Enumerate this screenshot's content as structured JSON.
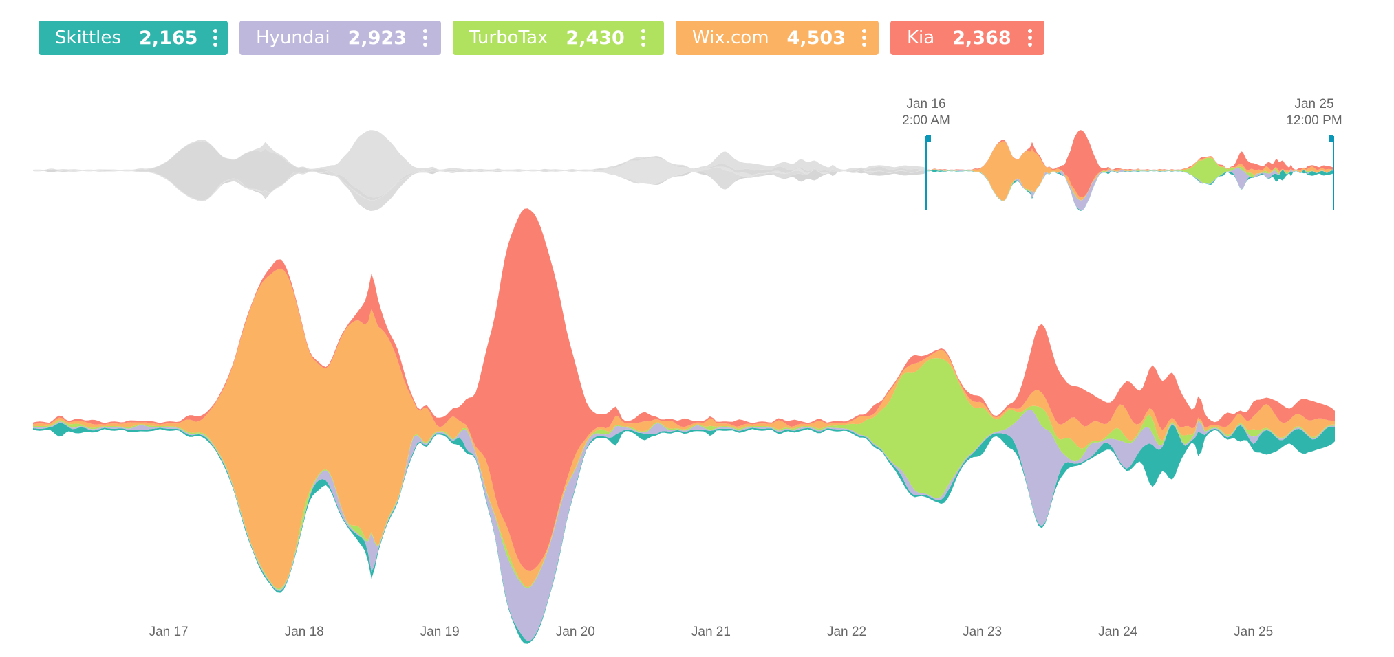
{
  "legend": [
    {
      "name": "Skittles",
      "count": "2,165",
      "color": "#2FB5AC"
    },
    {
      "name": "Hyundai",
      "count": "2,923",
      "color": "#BEB8DC"
    },
    {
      "name": "TurboTax",
      "count": "2,430",
      "color": "#B0E15F"
    },
    {
      "name": "Wix.com",
      "count": "4,503",
      "color": "#FBB262"
    },
    {
      "name": "Kia",
      "count": "2,368",
      "color": "#FA8072"
    }
  ],
  "brush": {
    "start_date": "Jan 16",
    "start_time": "2:00 AM",
    "end_date": "Jan 25",
    "end_time": "12:00 PM"
  },
  "chart_data": {
    "type": "area",
    "layout": "streamgraph",
    "x_unit": "days",
    "x_range": [
      16.0,
      25.6
    ],
    "xticks": [
      {
        "label": "Jan 17",
        "x": 17
      },
      {
        "label": "Jan 18",
        "x": 18
      },
      {
        "label": "Jan 19",
        "x": 19
      },
      {
        "label": "Jan 20",
        "x": 20
      },
      {
        "label": "Jan 21",
        "x": 21
      },
      {
        "label": "Jan 22",
        "x": 22
      },
      {
        "label": "Jan 23",
        "x": 23
      },
      {
        "label": "Jan 24",
        "x": 24
      },
      {
        "label": "Jan 25",
        "x": 25
      }
    ],
    "series": [
      {
        "name": "Skittles",
        "color": "#2FB5AC",
        "peaks": [
          [
            16.2,
            18,
            5
          ],
          [
            16.35,
            6,
            5
          ],
          [
            18.1,
            12,
            4
          ],
          [
            18.45,
            12,
            4
          ],
          [
            19.15,
            10,
            6
          ],
          [
            19.6,
            6,
            6
          ],
          [
            20.3,
            14,
            8
          ],
          [
            20.5,
            8,
            6
          ],
          [
            21.0,
            5,
            10
          ],
          [
            22.4,
            6,
            6
          ],
          [
            22.75,
            8,
            4
          ],
          [
            23.0,
            14,
            4
          ],
          [
            23.2,
            16,
            4
          ],
          [
            23.6,
            12,
            5
          ],
          [
            23.9,
            10,
            5
          ],
          [
            24.15,
            6,
            4
          ],
          [
            24.25,
            60,
            4
          ],
          [
            24.4,
            80,
            4
          ],
          [
            24.6,
            38,
            10
          ],
          [
            24.9,
            22,
            6
          ],
          [
            25.1,
            34,
            3
          ],
          [
            25.35,
            32,
            3
          ],
          [
            25.55,
            26,
            3
          ]
        ],
        "base": 3
      },
      {
        "name": "Hyundai",
        "color": "#BEB8DC",
        "peaks": [
          [
            16.8,
            6,
            5
          ],
          [
            18.2,
            18,
            3
          ],
          [
            18.5,
            58,
            10
          ],
          [
            18.8,
            20,
            6
          ],
          [
            19.2,
            26,
            6
          ],
          [
            19.5,
            26,
            3
          ],
          [
            19.7,
            80,
            1
          ],
          [
            19.9,
            20,
            3
          ],
          [
            20.3,
            10,
            5
          ],
          [
            20.6,
            14,
            5
          ],
          [
            20.9,
            6,
            8
          ],
          [
            22.45,
            12,
            4
          ],
          [
            22.75,
            6,
            4
          ],
          [
            23.4,
            150,
            2
          ],
          [
            23.5,
            32,
            4
          ],
          [
            23.8,
            18,
            4
          ],
          [
            24.05,
            36,
            3
          ],
          [
            24.2,
            24,
            3
          ],
          [
            24.6,
            16,
            8
          ],
          [
            25.0,
            10,
            8
          ]
        ],
        "base": 2
      },
      {
        "name": "TurboTax",
        "color": "#B0E15F",
        "peaks": [
          [
            16.3,
            4,
            6
          ],
          [
            18.0,
            12,
            6
          ],
          [
            18.4,
            10,
            6
          ],
          [
            19.5,
            8,
            4
          ],
          [
            20.2,
            6,
            6
          ],
          [
            21.0,
            4,
            8
          ],
          [
            22.4,
            10,
            4
          ],
          [
            22.6,
            192,
            0.8
          ],
          [
            22.7,
            30,
            3
          ],
          [
            22.8,
            14,
            4
          ],
          [
            23.0,
            12,
            4
          ],
          [
            23.2,
            20,
            4
          ],
          [
            23.45,
            26,
            4
          ],
          [
            23.65,
            30,
            3
          ],
          [
            24.0,
            16,
            4
          ],
          [
            24.25,
            20,
            4
          ],
          [
            24.5,
            12,
            6
          ],
          [
            25.0,
            10,
            6
          ]
        ],
        "base": 2
      },
      {
        "name": "Wix.com",
        "color": "#FBB262",
        "peaks": [
          [
            16.4,
            4,
            6
          ],
          [
            16.7,
            4,
            6
          ],
          [
            17.15,
            12,
            4
          ],
          [
            17.35,
            10,
            4
          ],
          [
            17.7,
            400,
            1
          ],
          [
            17.85,
            120,
            2
          ],
          [
            17.95,
            130,
            2
          ],
          [
            18.1,
            60,
            3
          ],
          [
            18.3,
            120,
            2
          ],
          [
            18.45,
            220,
            1
          ],
          [
            18.55,
            130,
            2
          ],
          [
            18.7,
            80,
            3
          ],
          [
            18.9,
            40,
            5
          ],
          [
            19.1,
            30,
            5
          ],
          [
            19.35,
            40,
            4
          ],
          [
            19.5,
            30,
            3
          ],
          [
            19.65,
            20,
            3
          ],
          [
            20.0,
            16,
            4
          ],
          [
            20.3,
            10,
            5
          ],
          [
            20.5,
            12,
            4
          ],
          [
            20.7,
            8,
            5
          ],
          [
            21.0,
            8,
            6
          ],
          [
            21.5,
            10,
            6
          ],
          [
            21.8,
            8,
            6
          ],
          [
            22.1,
            8,
            6
          ],
          [
            22.3,
            12,
            4
          ],
          [
            22.5,
            10,
            4
          ],
          [
            22.7,
            10,
            4
          ],
          [
            22.95,
            6,
            4
          ],
          [
            23.4,
            20,
            3
          ],
          [
            23.55,
            16,
            3
          ],
          [
            23.7,
            34,
            3
          ],
          [
            23.85,
            24,
            3
          ],
          [
            24.05,
            40,
            3
          ],
          [
            24.3,
            16,
            4
          ],
          [
            24.5,
            10,
            4
          ],
          [
            24.85,
            14,
            4
          ],
          [
            25.1,
            32,
            2
          ],
          [
            25.3,
            12,
            3
          ],
          [
            25.45,
            22,
            3
          ]
        ],
        "base": 4
      },
      {
        "name": "Kia",
        "color": "#FA8072",
        "peaks": [
          [
            16.45,
            4,
            6
          ],
          [
            17.2,
            6,
            4
          ],
          [
            17.8,
            12,
            3
          ],
          [
            18.5,
            50,
            3
          ],
          [
            18.7,
            14,
            4
          ],
          [
            19.0,
            10,
            5
          ],
          [
            19.45,
            18,
            4
          ],
          [
            19.55,
            200,
            1
          ],
          [
            19.65,
            230,
            1
          ],
          [
            19.75,
            160,
            1
          ],
          [
            19.85,
            60,
            2
          ],
          [
            20.0,
            20,
            3
          ],
          [
            20.25,
            16,
            4
          ],
          [
            20.5,
            12,
            4
          ],
          [
            20.8,
            10,
            5
          ],
          [
            21.2,
            8,
            6
          ],
          [
            21.6,
            8,
            6
          ],
          [
            22.2,
            10,
            6
          ],
          [
            22.5,
            10,
            4
          ],
          [
            22.95,
            8,
            4
          ],
          [
            23.3,
            10,
            4
          ],
          [
            23.45,
            100,
            2
          ],
          [
            23.6,
            40,
            3
          ],
          [
            23.75,
            50,
            3
          ],
          [
            23.9,
            30,
            3
          ],
          [
            24.1,
            46,
            3
          ],
          [
            24.3,
            70,
            2
          ],
          [
            24.45,
            40,
            3
          ],
          [
            24.6,
            28,
            4
          ],
          [
            24.8,
            18,
            5
          ],
          [
            25.0,
            20,
            4
          ],
          [
            25.2,
            24,
            3
          ],
          [
            25.4,
            28,
            3
          ],
          [
            25.55,
            18,
            3
          ]
        ],
        "base": 3
      }
    ]
  }
}
